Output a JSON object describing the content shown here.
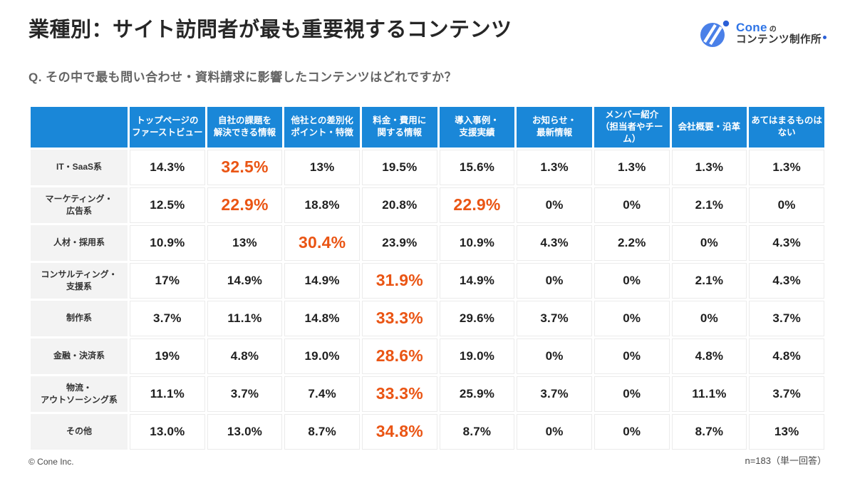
{
  "page": {
    "title": "業種別：サイト訪問者が最も重要視するコンテンツ",
    "question": "Q. その中で最も問い合わせ・資料請求に影響したコンテンツはどれですか？",
    "footer_left": "© Cone Inc.",
    "footer_right": "n=183（単一回答）"
  },
  "logo": {
    "brand": "Cone",
    "particle": "の",
    "studio": "コンテンツ制作所"
  },
  "colors": {
    "header_bg": "#1a87d8",
    "highlight": "#ea5514",
    "row_label_bg": "#f3f3f3",
    "logo_blue": "#4a80e8",
    "logo_dot_blue": "#2a5fd7",
    "brand_text_blue": "#2e74e6"
  },
  "chart_data": {
    "type": "table",
    "title": "業種別：サイト訪問者が最も重要視するコンテンツ",
    "question": "Q. その中で最も問い合わせ・資料請求に影響したコンテンツはどれですか？",
    "sample_note": "n=183（単一回答）",
    "columns": [
      "トップページの\nファーストビュー",
      "自社の課題を\n解決できる情報",
      "他社との差別化\nポイント・特徴",
      "料金・費用に\n関する情報",
      "導入事例・\n支援実績",
      "お知らせ・\n最新情報",
      "メンバー紹介\n（担当者やチーム）",
      "会社概要・沿革",
      "あてはまるものは\nない"
    ],
    "rows": [
      {
        "label": "IT・SaaS系",
        "values": [
          "14.3%",
          "32.5%",
          "13%",
          "19.5%",
          "15.6%",
          "1.3%",
          "1.3%",
          "1.3%",
          "1.3%"
        ],
        "highlight": [
          1
        ]
      },
      {
        "label": "マーケティング・\n広告系",
        "values": [
          "12.5%",
          "22.9%",
          "18.8%",
          "20.8%",
          "22.9%",
          "0%",
          "0%",
          "2.1%",
          "0%"
        ],
        "highlight": [
          1,
          4
        ]
      },
      {
        "label": "人材・採用系",
        "values": [
          "10.9%",
          "13%",
          "30.4%",
          "23.9%",
          "10.9%",
          "4.3%",
          "2.2%",
          "0%",
          "4.3%"
        ],
        "highlight": [
          2
        ]
      },
      {
        "label": "コンサルティング・\n支援系",
        "values": [
          "17%",
          "14.9%",
          "14.9%",
          "31.9%",
          "14.9%",
          "0%",
          "0%",
          "2.1%",
          "4.3%"
        ],
        "highlight": [
          3
        ]
      },
      {
        "label": "制作系",
        "values": [
          "3.7%",
          "11.1%",
          "14.8%",
          "33.3%",
          "29.6%",
          "3.7%",
          "0%",
          "0%",
          "3.7%"
        ],
        "highlight": [
          3
        ]
      },
      {
        "label": "金融・決済系",
        "values": [
          "19%",
          "4.8%",
          "19.0%",
          "28.6%",
          "19.0%",
          "0%",
          "0%",
          "4.8%",
          "4.8%"
        ],
        "highlight": [
          3
        ]
      },
      {
        "label": "物流・\nアウトソーシング系",
        "values": [
          "11.1%",
          "3.7%",
          "7.4%",
          "33.3%",
          "25.9%",
          "3.7%",
          "0%",
          "11.1%",
          "3.7%"
        ],
        "highlight": [
          3
        ]
      },
      {
        "label": "その他",
        "values": [
          "13.0%",
          "13.0%",
          "8.7%",
          "34.8%",
          "8.7%",
          "0%",
          "0%",
          "8.7%",
          "13%"
        ],
        "highlight": [
          3
        ]
      }
    ]
  }
}
